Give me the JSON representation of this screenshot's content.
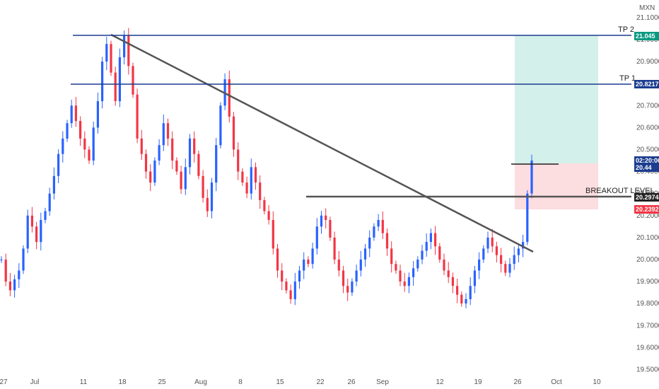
{
  "chart_data": {
    "type": "candlestick",
    "currency": "MXN",
    "x_ticks": [
      "27",
      "Jul",
      "11",
      "18",
      "25",
      "Aug",
      "8",
      "15",
      "22",
      "26",
      "Sep",
      "12",
      "19",
      "26",
      "Oct",
      "10"
    ],
    "y_ticks": [
      "21.10000",
      "21.00000",
      "20.90000",
      "20.80000",
      "20.70000",
      "20.60000",
      "20.50000",
      "20.40000",
      "20.30000",
      "20.20000",
      "20.10000",
      "20.00000",
      "19.90000",
      "19.80000",
      "19.70000",
      "19.60000",
      "19.50000"
    ],
    "ylim": [
      19.45,
      21.18
    ],
    "close_path": [
      20.0,
      19.9,
      19.86,
      19.91,
      19.95,
      20.05,
      20.2,
      20.15,
      20.08,
      20.18,
      20.22,
      20.3,
      20.38,
      20.48,
      20.55,
      20.62,
      20.7,
      20.63,
      20.55,
      20.5,
      20.45,
      20.6,
      20.72,
      20.9,
      20.98,
      20.85,
      20.72,
      20.92,
      21.02,
      20.88,
      20.75,
      20.55,
      20.48,
      20.4,
      20.35,
      20.45,
      20.52,
      20.62,
      20.55,
      20.45,
      20.4,
      20.32,
      20.42,
      20.55,
      20.48,
      20.38,
      20.28,
      20.22,
      20.35,
      20.52,
      20.7,
      20.82,
      20.65,
      20.5,
      20.4,
      20.35,
      20.3,
      20.42,
      20.35,
      20.27,
      20.22,
      20.18,
      20.05,
      19.95,
      19.9,
      19.86,
      19.82,
      19.9,
      19.95,
      20.0,
      19.98,
      20.05,
      20.15,
      20.2,
      20.18,
      20.1,
      20.0,
      19.95,
      19.88,
      19.85,
      19.9,
      19.95,
      20.0,
      20.05,
      20.1,
      20.15,
      20.18,
      20.12,
      20.05,
      19.98,
      19.95,
      19.9,
      19.88,
      19.92,
      19.96,
      20.0,
      20.04,
      20.08,
      20.12,
      20.06,
      20.0,
      19.95,
      19.92,
      19.88,
      19.84,
      19.8,
      19.82,
      19.88,
      19.95,
      20.0,
      20.05,
      20.1,
      20.06,
      20.02,
      19.98,
      19.94,
      19.98,
      20.02,
      20.05,
      20.08,
      20.3,
      20.45
    ],
    "annotations": {
      "tp2": {
        "label": "TP 2",
        "price": 21.045
      },
      "tp1": {
        "label": "TP 1",
        "price": 20.8217
      },
      "breakout": {
        "label": "BREAKOUT LEVEL",
        "price": 20.29745
      },
      "stop": {
        "price": 20.2392
      },
      "current": {
        "price": 20.44,
        "countdown": "02:20:06"
      }
    },
    "trendline": {
      "start_price": 21.04,
      "end_price": 20.04
    },
    "colors": {
      "up": "#2962ff",
      "down": "#f23645",
      "target_zone": "#d4f0ea",
      "stop_zone": "#fcdde0",
      "level_line": "#1b3c8f",
      "trend_line": "#555555"
    }
  }
}
